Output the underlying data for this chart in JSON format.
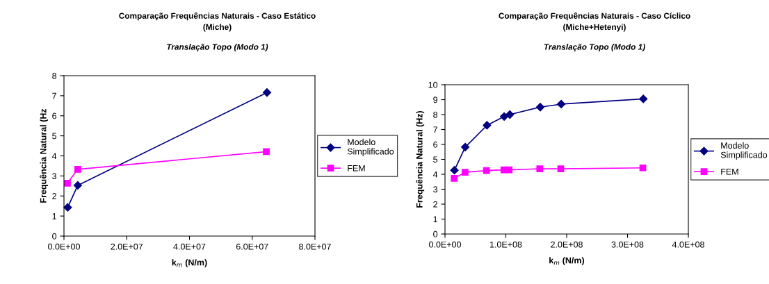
{
  "chart_data": [
    {
      "type": "line",
      "title": "Comparação Frequências Naturais - Caso Estático\n(Miche)",
      "subtitle": "Translação Topo (Modo 1)",
      "xlabel": "k$_{m}$ (N/m)",
      "ylabel": "Frequência Natural (Hz",
      "series": [
        {
          "name": "Modelo Simplificado",
          "color": "#000080",
          "marker": "diamond",
          "x": [
            1200000,
            4400000,
            64700000
          ],
          "values": [
            1.43,
            2.53,
            7.16
          ]
        },
        {
          "name": "FEM",
          "color": "#ff00ff",
          "marker": "square",
          "x": [
            1100000,
            4400000,
            64500000
          ],
          "values": [
            2.64,
            3.33,
            4.21
          ]
        }
      ],
      "xlim": [
        0,
        80000000
      ],
      "xticks": [
        {
          "value": 0,
          "label": "0.0E+00"
        },
        {
          "value": 20000000,
          "label": "2.0E+07"
        },
        {
          "value": 40000000,
          "label": "4.0E+07"
        },
        {
          "value": 60000000,
          "label": "6.0E+07"
        },
        {
          "value": 80000000,
          "label": "8.0E+07"
        }
      ],
      "ylim": [
        0,
        8
      ],
      "yticks": [
        0,
        1,
        2,
        3,
        4,
        5,
        6,
        7,
        8
      ],
      "grid": false,
      "legend": "right"
    },
    {
      "type": "line",
      "title": "Comparação Frequências Naturais - Caso Cíclico\n(Miche+Hetenyi)",
      "subtitle": "Translação Topo (Modo 1)",
      "xlabel": "k$_{m}$ (N/m)",
      "ylabel": "Frequência Natural (Hz)",
      "series": [
        {
          "name": "Modelo Simplificado",
          "color": "#000080",
          "marker": "diamond",
          "x": [
            15500000,
            33300000,
            69000000,
            97300000,
            106600000,
            156600000,
            191000000,
            326000000
          ],
          "values": [
            4.27,
            5.82,
            7.28,
            7.87,
            8.0,
            8.5,
            8.7,
            9.05
          ]
        },
        {
          "name": "FEM",
          "color": "#ff00ff",
          "marker": "square",
          "x": [
            15100000,
            33000000,
            68200000,
            96900000,
            105400000,
            155800000,
            190300000,
            325200000
          ],
          "values": [
            3.73,
            4.13,
            4.25,
            4.3,
            4.3,
            4.37,
            4.37,
            4.43
          ]
        }
      ],
      "xlim": [
        0,
        400000000
      ],
      "xticks": [
        {
          "value": 0,
          "label": "0.0E+00"
        },
        {
          "value": 100000000,
          "label": "1.0E+08"
        },
        {
          "value": 200000000,
          "label": "2.0E+08"
        },
        {
          "value": 300000000,
          "label": "3.0E+08"
        },
        {
          "value": 400000000,
          "label": "4.0E+08"
        }
      ],
      "ylim": [
        0,
        10
      ],
      "yticks": [
        0,
        1,
        2,
        3,
        4,
        5,
        6,
        7,
        8,
        9,
        10
      ],
      "grid": false,
      "legend": "right"
    }
  ]
}
